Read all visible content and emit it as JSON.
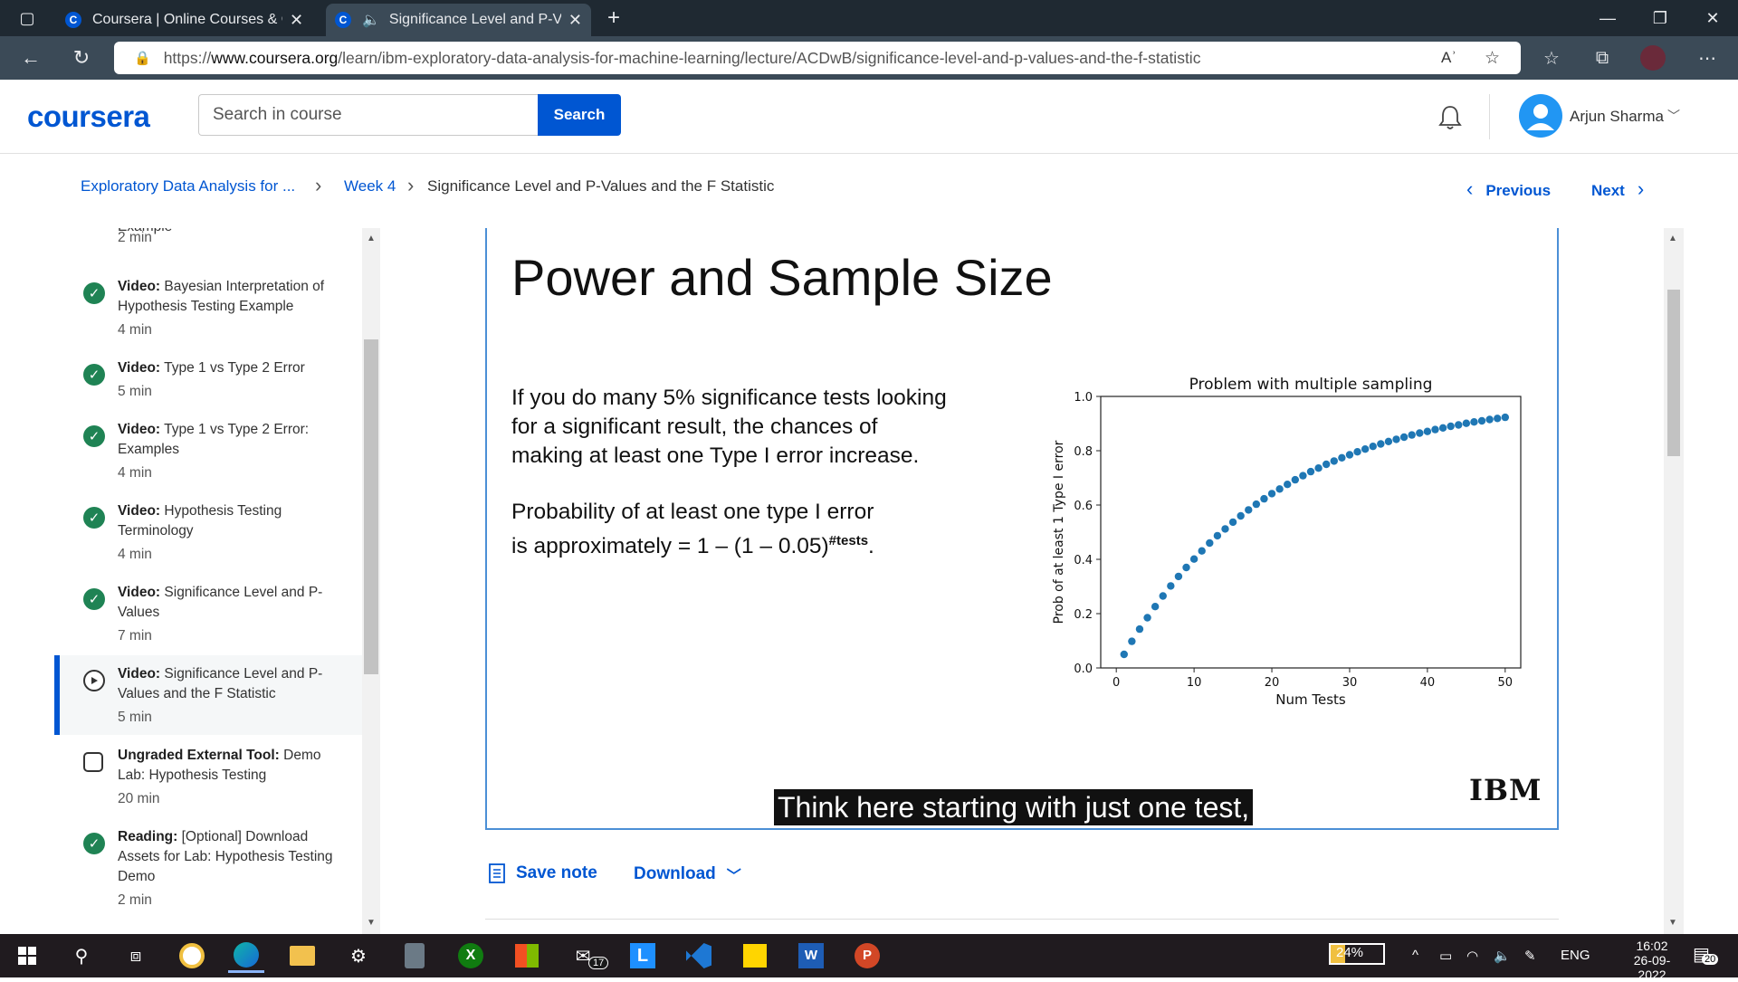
{
  "browser": {
    "tabs": [
      {
        "title": "Coursera | Online Courses & Cre",
        "active": false
      },
      {
        "title": "Significance Level and P-Val",
        "active": true
      }
    ],
    "url_prefix": "https://",
    "url_domain": "www.coursera.org",
    "url_path": "/learn/ibm-exploratory-data-analysis-for-machine-learning/lecture/ACDwB/significance-level-and-p-values-and-the-f-statistic"
  },
  "header": {
    "logo": "coursera",
    "search_placeholder": "Search in course",
    "search_button": "Search",
    "user_name": "Arjun Sharma"
  },
  "breadcrumb": {
    "course": "Exploratory Data Analysis for ...",
    "week": "Week 4",
    "lecture": "Significance Level and P-Values and the F Statistic",
    "previous": "Previous",
    "next": "Next"
  },
  "sidebar": {
    "top_partial": {
      "label": "Example",
      "duration": "2 min"
    },
    "items": [
      {
        "type": "Video:",
        "title": "Bayesian Interpretation of Hypothesis Testing Example",
        "duration": "4 min",
        "status": "done"
      },
      {
        "type": "Video:",
        "title": "Type 1 vs Type 2 Error",
        "duration": "5 min",
        "status": "done"
      },
      {
        "type": "Video:",
        "title": "Type 1 vs Type 2 Error: Examples",
        "duration": "4 min",
        "status": "done"
      },
      {
        "type": "Video:",
        "title": "Hypothesis Testing Terminology",
        "duration": "4 min",
        "status": "done"
      },
      {
        "type": "Video:",
        "title": "Significance Level and P-Values",
        "duration": "7 min",
        "status": "done"
      },
      {
        "type": "Video:",
        "title": "Significance Level and P-Values and the F Statistic",
        "duration": "5 min",
        "status": "current"
      },
      {
        "type": "Ungraded External Tool:",
        "title": "Demo Lab: Hypothesis Testing",
        "duration": "20 min",
        "status": "tool"
      },
      {
        "type": "Reading:",
        "title": "[Optional] Download Assets for Lab: Hypothesis Testing Demo",
        "duration": "2 min",
        "status": "done"
      }
    ]
  },
  "slide": {
    "title": "Power and Sample Size",
    "para1": [
      "If you do many 5% significance tests looking",
      "for a significant result, the chances of",
      "making at least one Type I error increase."
    ],
    "para2_line1": "Probability of at least one type I error",
    "para2_line2": "is approximately = 1 – (1 – 0.05)",
    "para2_sup": "#tests",
    "para2_end": ".",
    "logo": "IBM",
    "caption": "Think here starting with just one test,"
  },
  "chart_data": {
    "type": "scatter",
    "title": "Problem with multiple sampling",
    "xlabel": "Num Tests",
    "ylabel": "Prob of at least 1 Type I error",
    "xlim": [
      -2,
      52
    ],
    "ylim": [
      0,
      1.0
    ],
    "xticks": [
      0,
      10,
      20,
      30,
      40,
      50
    ],
    "yticks": [
      0.0,
      0.2,
      0.4,
      0.6,
      0.8,
      1.0
    ],
    "x": [
      1,
      2,
      3,
      4,
      5,
      6,
      7,
      8,
      9,
      10,
      11,
      12,
      13,
      14,
      15,
      16,
      17,
      18,
      19,
      20,
      21,
      22,
      23,
      24,
      25,
      26,
      27,
      28,
      29,
      30,
      31,
      32,
      33,
      34,
      35,
      36,
      37,
      38,
      39,
      40,
      41,
      42,
      43,
      44,
      45,
      46,
      47,
      48,
      49,
      50
    ],
    "y": [
      0.05,
      0.098,
      0.143,
      0.185,
      0.226,
      0.265,
      0.302,
      0.337,
      0.37,
      0.401,
      0.431,
      0.46,
      0.487,
      0.512,
      0.537,
      0.56,
      0.582,
      0.603,
      0.623,
      0.642,
      0.659,
      0.676,
      0.693,
      0.708,
      0.723,
      0.736,
      0.75,
      0.762,
      0.774,
      0.785,
      0.796,
      0.806,
      0.816,
      0.825,
      0.834,
      0.842,
      0.85,
      0.858,
      0.865,
      0.871,
      0.878,
      0.884,
      0.89,
      0.895,
      0.901,
      0.906,
      0.91,
      0.915,
      0.919,
      0.923
    ],
    "marker_color": "#1f77b4"
  },
  "actions": {
    "save_note": "Save note",
    "download": "Download"
  },
  "taskbar": {
    "mail_badge": "17",
    "battery": "24%",
    "lang": "ENG",
    "time": "16:02",
    "date": "26-09-2022",
    "notif": "20"
  },
  "colors": {
    "accent": "#0056d2",
    "done": "#1f8354"
  }
}
